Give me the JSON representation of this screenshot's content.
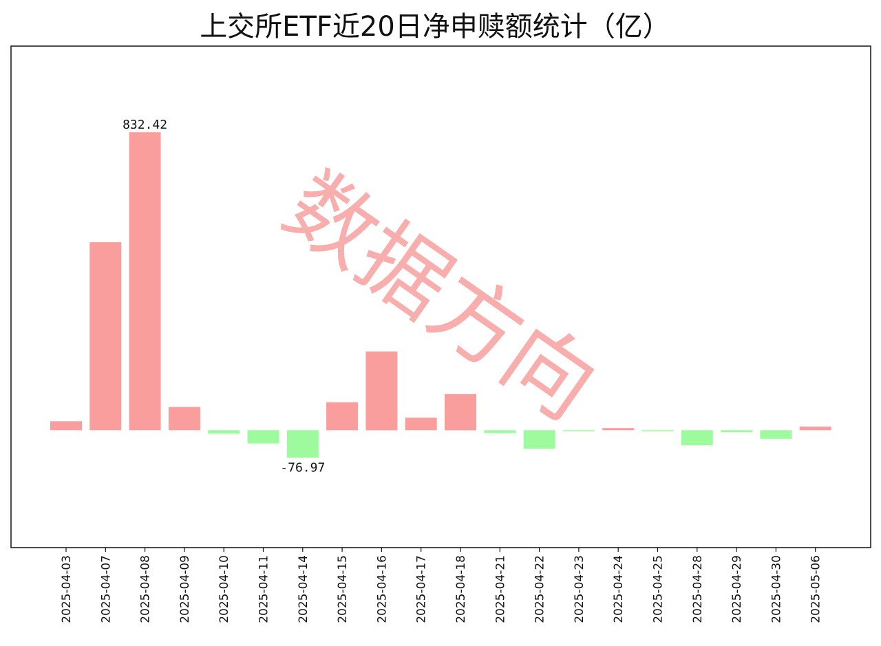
{
  "chart_data": {
    "type": "bar",
    "title": "上交所ETF近20日净申赎额统计（亿）",
    "categories": [
      "2025-04-03",
      "2025-04-07",
      "2025-04-08",
      "2025-04-09",
      "2025-04-10",
      "2025-04-11",
      "2025-04-14",
      "2025-04-15",
      "2025-04-16",
      "2025-04-17",
      "2025-04-18",
      "2025-04-21",
      "2025-04-22",
      "2025-04-23",
      "2025-04-24",
      "2025-04-25",
      "2025-04-28",
      "2025-04-29",
      "2025-04-30",
      "2025-05-06"
    ],
    "values": [
      25,
      525,
      832.42,
      65,
      -10,
      -37,
      -76.97,
      78,
      220,
      35,
      101,
      -8,
      -52,
      -3,
      6,
      -3,
      -42,
      -6,
      -24,
      10
    ],
    "data_labels": {
      "max": "832.42",
      "min": "-76.97"
    },
    "ylim": [
      -328,
      1073
    ],
    "xlabel": "",
    "ylabel": "",
    "grid": false,
    "colors": {
      "positive": "#f99d9d",
      "negative": "#9dfb9d",
      "axes": "#111111"
    }
  },
  "watermark": {
    "text": "数据方向",
    "color": "#f57878"
  }
}
